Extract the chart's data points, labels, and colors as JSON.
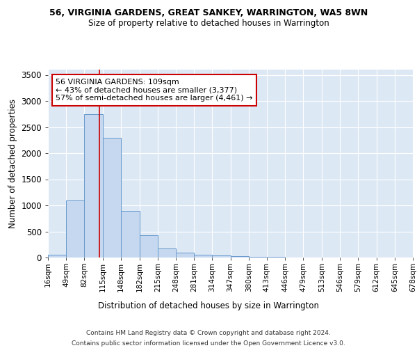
{
  "title1": "56, VIRGINIA GARDENS, GREAT SANKEY, WARRINGTON, WA5 8WN",
  "title2": "Size of property relative to detached houses in Warrington",
  "xlabel": "Distribution of detached houses by size in Warrington",
  "ylabel": "Number of detached properties",
  "bin_edges": [
    16,
    49,
    82,
    115,
    148,
    182,
    215,
    248,
    281,
    314,
    347,
    380,
    413,
    446,
    479,
    513,
    546,
    579,
    612,
    645,
    678
  ],
  "bar_heights": [
    50,
    1100,
    2750,
    2300,
    900,
    430,
    175,
    100,
    55,
    40,
    30,
    20,
    10,
    5,
    3,
    3,
    2,
    2,
    1,
    1
  ],
  "bar_color": "#c5d8f0",
  "bar_edge_color": "#6699cc",
  "background_color": "#dde8f5",
  "grid_color": "#ffffff",
  "red_line_x": 109,
  "annotation_line1": "56 VIRGINIA GARDENS: 109sqm",
  "annotation_line2": "← 43% of detached houses are smaller (3,377)",
  "annotation_line3": "57% of semi-detached houses are larger (4,461) →",
  "annotation_box_color": "#ffffff",
  "annotation_box_edge": "#cc0000",
  "ylim": [
    0,
    3600
  ],
  "yticks": [
    0,
    500,
    1000,
    1500,
    2000,
    2500,
    3000,
    3500
  ],
  "footer1": "Contains HM Land Registry data © Crown copyright and database right 2024.",
  "footer2": "Contains public sector information licensed under the Open Government Licence v3.0.",
  "fig_bg": "#ffffff"
}
